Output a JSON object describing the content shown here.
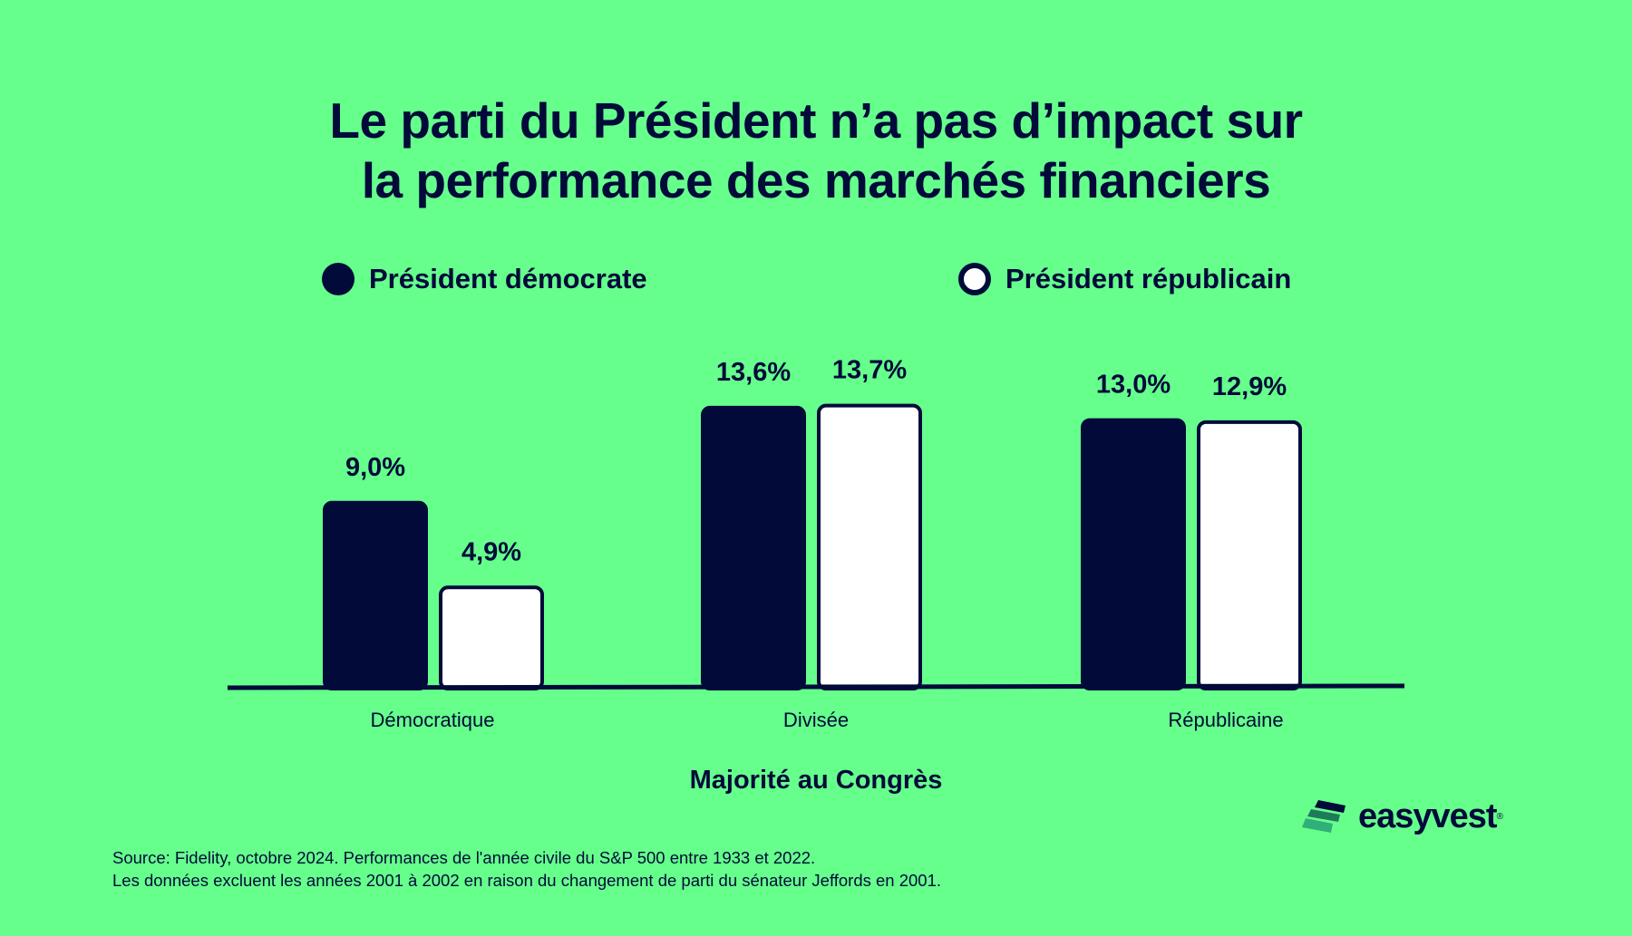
{
  "chart_data": {
    "type": "bar",
    "title": [
      "Le parti du Président n’a pas d’impact sur",
      "la performance des marchés financiers"
    ],
    "categories": [
      "Démocratique",
      "Divisée",
      "Républicaine"
    ],
    "xlabel": "Majorité au Congrès",
    "ylabel": "",
    "series": [
      {
        "name": "Président démocrate",
        "values": [
          9.0,
          13.6,
          13.0
        ],
        "labels": [
          "9,0%",
          "13,6%",
          "13,0%"
        ],
        "color": "#020a3a"
      },
      {
        "name": "Président républicain",
        "values": [
          4.9,
          13.7,
          12.9
        ],
        "labels": [
          "4,9%",
          "13,7%",
          "12,9%"
        ],
        "color": "#ffffff"
      }
    ],
    "ylim": [
      0,
      14
    ],
    "grid": false,
    "legend": "top"
  },
  "colors": {
    "background": "#66ff8c",
    "text": "#020a3a"
  },
  "source": [
    "Source: Fidelity, octobre 2024. Performances de l'année civile du S&P 500 entre 1933 et 2022.",
    "Les données excluent les années 2001 à 2002 en raison du changement de parti du sénateur Jeffords en 2001."
  ],
  "logo": {
    "text": "easyvest"
  }
}
